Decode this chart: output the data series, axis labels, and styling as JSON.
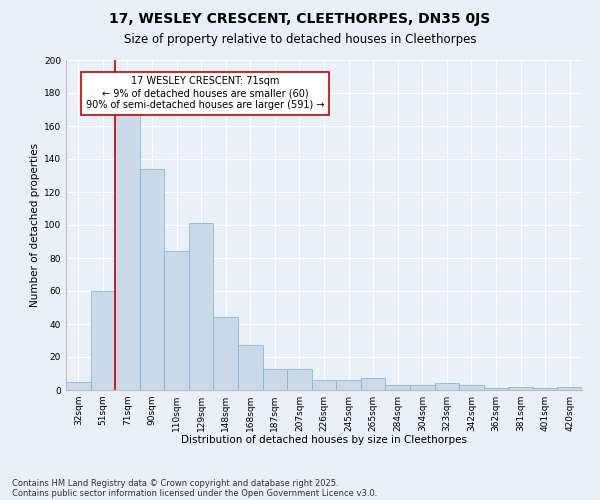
{
  "title_line1": "17, WESLEY CRESCENT, CLEETHORPES, DN35 0JS",
  "title_line2": "Size of property relative to detached houses in Cleethorpes",
  "xlabel": "Distribution of detached houses by size in Cleethorpes",
  "ylabel": "Number of detached properties",
  "categories": [
    "32sqm",
    "51sqm",
    "71sqm",
    "90sqm",
    "110sqm",
    "129sqm",
    "148sqm",
    "168sqm",
    "187sqm",
    "207sqm",
    "226sqm",
    "245sqm",
    "265sqm",
    "284sqm",
    "304sqm",
    "323sqm",
    "342sqm",
    "362sqm",
    "381sqm",
    "401sqm",
    "420sqm"
  ],
  "values": [
    5,
    60,
    167,
    134,
    84,
    101,
    44,
    27,
    13,
    13,
    6,
    6,
    7,
    3,
    3,
    4,
    3,
    1,
    2,
    1,
    2
  ],
  "bar_color": "#ccd9e8",
  "bar_edge_color": "#7bafd4",
  "vline_color": "#cc0000",
  "vline_x": 1.5,
  "annotation_text": "17 WESLEY CRESCENT: 71sqm\n← 9% of detached houses are smaller (60)\n90% of semi-detached houses are larger (591) →",
  "annotation_box_color": "#ffffff",
  "annotation_box_edge": "#cc0000",
  "ylim": [
    0,
    200
  ],
  "yticks": [
    0,
    20,
    40,
    60,
    80,
    100,
    120,
    140,
    160,
    180,
    200
  ],
  "bg_color": "#e8f0f8",
  "plot_bg_color": "#e8f0f8",
  "grid_color": "#ffffff",
  "footer_line1": "Contains HM Land Registry data © Crown copyright and database right 2025.",
  "footer_line2": "Contains public sector information licensed under the Open Government Licence v3.0.",
  "title1_fontsize": 10,
  "title2_fontsize": 8.5,
  "axis_label_fontsize": 7.5,
  "tick_fontsize": 6.5,
  "annotation_fontsize": 7,
  "footer_fontsize": 6
}
